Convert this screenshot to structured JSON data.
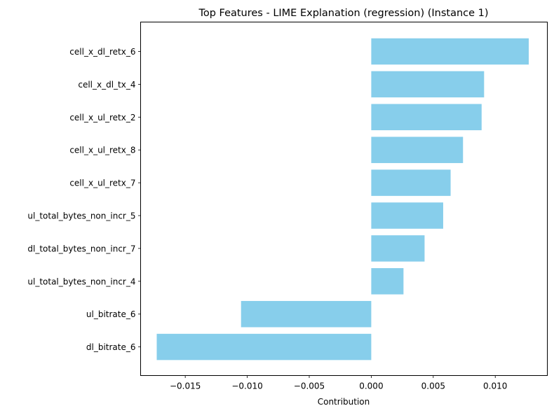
{
  "chart_data": {
    "type": "bar",
    "orientation": "horizontal",
    "title": "Top Features - LIME Explanation (regression) (Instance 1)",
    "xlabel": "Contribution",
    "ylabel": "",
    "bar_color": "#87CEEB",
    "grid": false,
    "xlim": [
      -0.0186,
      0.0142
    ],
    "xticks": [
      -0.015,
      -0.01,
      -0.005,
      0.0,
      0.005,
      0.01
    ],
    "xtick_labels": [
      "−0.015",
      "−0.010",
      "−0.005",
      "0.000",
      "0.005",
      "0.010"
    ],
    "categories": [
      "cell_x_dl_retx_6",
      "cell_x_dl_tx_4",
      "cell_x_ul_retx_2",
      "cell_x_ul_retx_8",
      "cell_x_ul_retx_7",
      "ul_total_bytes_non_incr_5",
      "dl_total_bytes_non_incr_7",
      "ul_total_bytes_non_incr_4",
      "ul_bitrate_6",
      "dl_bitrate_6"
    ],
    "values": [
      0.0127,
      0.0091,
      0.0089,
      0.0074,
      0.0064,
      0.0058,
      0.0043,
      0.0026,
      -0.0105,
      -0.0173
    ]
  }
}
